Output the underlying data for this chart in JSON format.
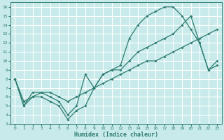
{
  "xlabel": "Humidex (Indice chaleur)",
  "bg_color": "#c8eaea",
  "grid_color": "#ffffff",
  "line_color": "#2e7d6e",
  "xlim": [
    -0.5,
    23.5
  ],
  "ylim": [
    3,
    16.5
  ],
  "xticks": [
    0,
    1,
    2,
    3,
    4,
    5,
    6,
    7,
    8,
    9,
    10,
    11,
    12,
    13,
    14,
    15,
    16,
    17,
    18,
    19,
    20,
    21,
    22,
    23
  ],
  "yticks": [
    3,
    4,
    5,
    6,
    7,
    8,
    9,
    10,
    11,
    12,
    13,
    14,
    15,
    16
  ],
  "line1_x": [
    0,
    1,
    2,
    3,
    4,
    5,
    6,
    7,
    8,
    9,
    10,
    11,
    12,
    13,
    14,
    15,
    16,
    17,
    18,
    19,
    20,
    21,
    22,
    23
  ],
  "line1_y": [
    8,
    5,
    6.5,
    6.5,
    6,
    5.5,
    4,
    5,
    8.5,
    7,
    8.5,
    9,
    9.5,
    12.5,
    14,
    15,
    15.5,
    16,
    16,
    15,
    13.5,
    12,
    9,
    9.5
  ],
  "line2_x": [
    0,
    1,
    2,
    3,
    4,
    5,
    6,
    7,
    8,
    9,
    10,
    11,
    12,
    13,
    14,
    15,
    16,
    17,
    18,
    19,
    20,
    21,
    22,
    23
  ],
  "line2_y": [
    8,
    5,
    6,
    6,
    5.5,
    5,
    3.5,
    4.5,
    5,
    7,
    8.5,
    9,
    9,
    10,
    11,
    11.5,
    12,
    12.5,
    13,
    14,
    15,
    12,
    9,
    10
  ],
  "line3_x": [
    0,
    1,
    2,
    3,
    4,
    5,
    6,
    7,
    8,
    9,
    10,
    11,
    12,
    13,
    14,
    15,
    16,
    17,
    18,
    19,
    20,
    21,
    22,
    23
  ],
  "line3_y": [
    8,
    5.5,
    6,
    6.5,
    6.5,
    6,
    5.5,
    6,
    6.5,
    7,
    7.5,
    8,
    8.5,
    9,
    9.5,
    10,
    10,
    10.5,
    11,
    11.5,
    12,
    12.5,
    13,
    13.5
  ]
}
